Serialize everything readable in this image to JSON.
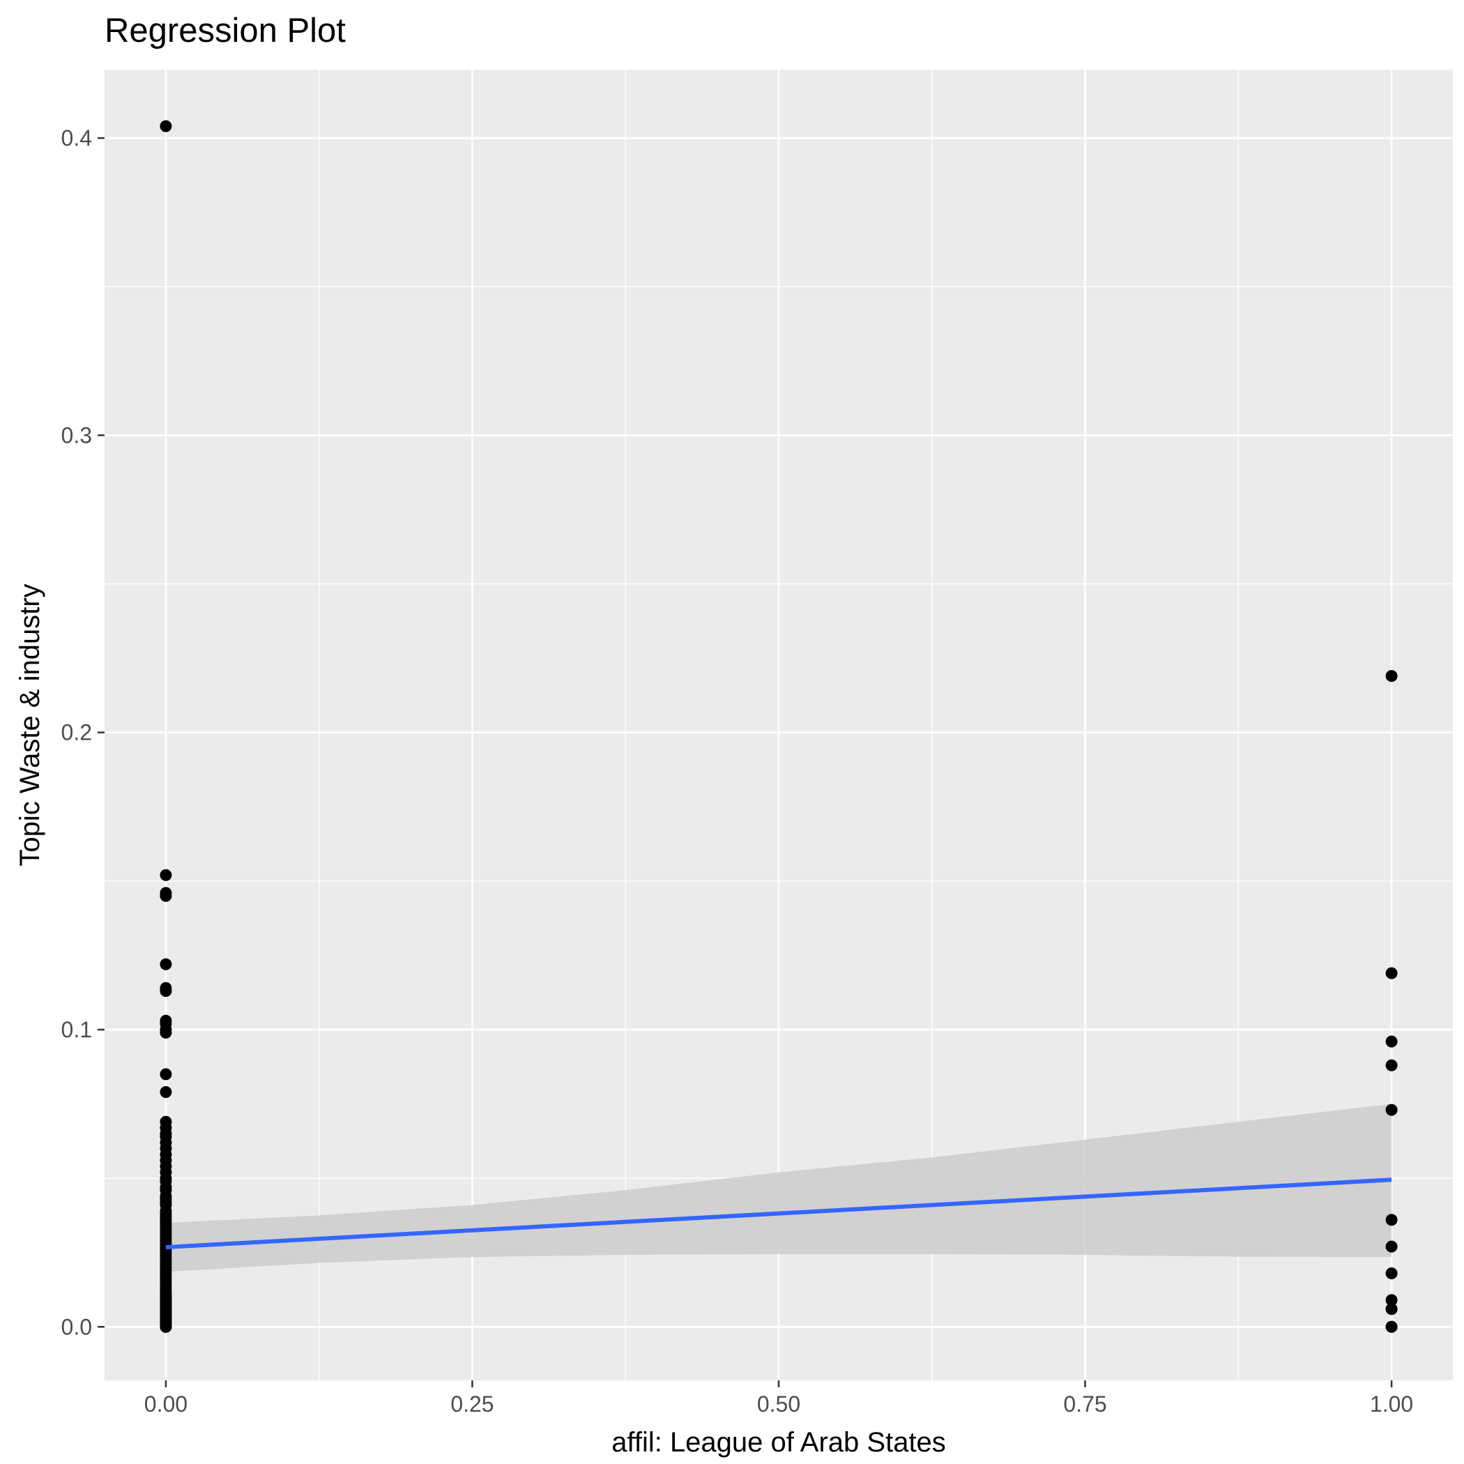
{
  "chart_data": {
    "type": "scatter",
    "title": "Regression Plot",
    "xlabel": "affil: League of Arab States",
    "ylabel": "Topic Waste & industry",
    "xlim": [
      -0.05,
      1.05
    ],
    "ylim": [
      -0.018,
      0.423
    ],
    "x_ticks": [
      0,
      0.25,
      0.5,
      0.75,
      1
    ],
    "x_tick_labels": [
      "0.00",
      "0.25",
      "0.50",
      "0.75",
      "1.00"
    ],
    "y_ticks": [
      0,
      0.1,
      0.2,
      0.3,
      0.4
    ],
    "y_tick_labels": [
      "0.0",
      "0.1",
      "0.2",
      "0.3",
      "0.4"
    ],
    "grid": true,
    "legend": "none",
    "points": {
      "color": "#000000",
      "x": [
        0,
        0,
        0,
        0,
        0,
        0,
        0,
        0,
        0,
        0,
        0,
        0,
        0,
        0,
        0,
        0,
        0,
        0,
        0,
        0,
        0,
        0,
        0,
        0,
        0,
        0,
        0,
        0,
        0,
        0,
        0,
        0,
        0,
        0,
        0,
        0,
        0,
        0,
        0,
        0,
        0,
        0,
        0,
        0,
        0,
        0,
        0,
        0,
        0,
        0,
        0,
        0,
        0,
        0,
        0,
        0,
        0,
        0,
        0,
        0,
        0,
        0,
        0,
        0,
        0,
        0,
        0,
        0,
        0,
        0,
        0,
        0,
        0,
        0,
        0,
        0,
        0,
        0,
        0,
        0,
        0,
        0,
        0,
        0,
        1,
        1,
        1,
        1,
        1,
        1,
        1,
        1,
        1,
        1,
        1,
        1,
        1
      ],
      "y": [
        0.404,
        0.152,
        0.146,
        0.145,
        0.122,
        0.114,
        0.113,
        0.103,
        0.102,
        0.1,
        0.099,
        0.085,
        0.079,
        0.069,
        0.067,
        0.065,
        0.064,
        0.062,
        0.06,
        0.058,
        0.056,
        0.054,
        0.052,
        0.05,
        0.049,
        0.047,
        0.046,
        0.044,
        0.043,
        0.042,
        0.041,
        0.039,
        0.038,
        0.037,
        0.036,
        0.035,
        0.034,
        0.033,
        0.032,
        0.031,
        0.03,
        0.029,
        0.028,
        0.027,
        0.026,
        0.025,
        0.024,
        0.023,
        0.022,
        0.021,
        0.02,
        0.019,
        0.018,
        0.017,
        0.016,
        0.015,
        0.014,
        0.013,
        0.012,
        0.011,
        0.01,
        0.009,
        0.008,
        0.007,
        0.006,
        0.005,
        0.004,
        0.003,
        0.002,
        0.001,
        0,
        0,
        0,
        0.0005,
        0.0015,
        0.0025,
        0.0035,
        0.0045,
        0.0055,
        0.0065,
        0.0075,
        0.0085,
        0.0095,
        0.0105,
        0.219,
        0.119,
        0.096,
        0.088,
        0.073,
        0.036,
        0.027,
        0.018,
        0.009,
        0.006,
        0.006,
        0,
        0
      ]
    },
    "regression_line": {
      "color": "#3366FF",
      "x": [
        0,
        1
      ],
      "y": [
        0.0268,
        0.0495
      ]
    },
    "confidence_band": {
      "color": "#CCCCCC",
      "x": [
        0,
        0.125,
        0.25,
        0.375,
        0.5,
        0.625,
        0.75,
        0.875,
        1
      ],
      "lower": [
        0.0185,
        0.0215,
        0.0235,
        0.0242,
        0.0245,
        0.0245,
        0.0242,
        0.0236,
        0.0235
      ],
      "upper": [
        0.035,
        0.0375,
        0.041,
        0.046,
        0.052,
        0.057,
        0.063,
        0.069,
        0.075
      ]
    }
  }
}
